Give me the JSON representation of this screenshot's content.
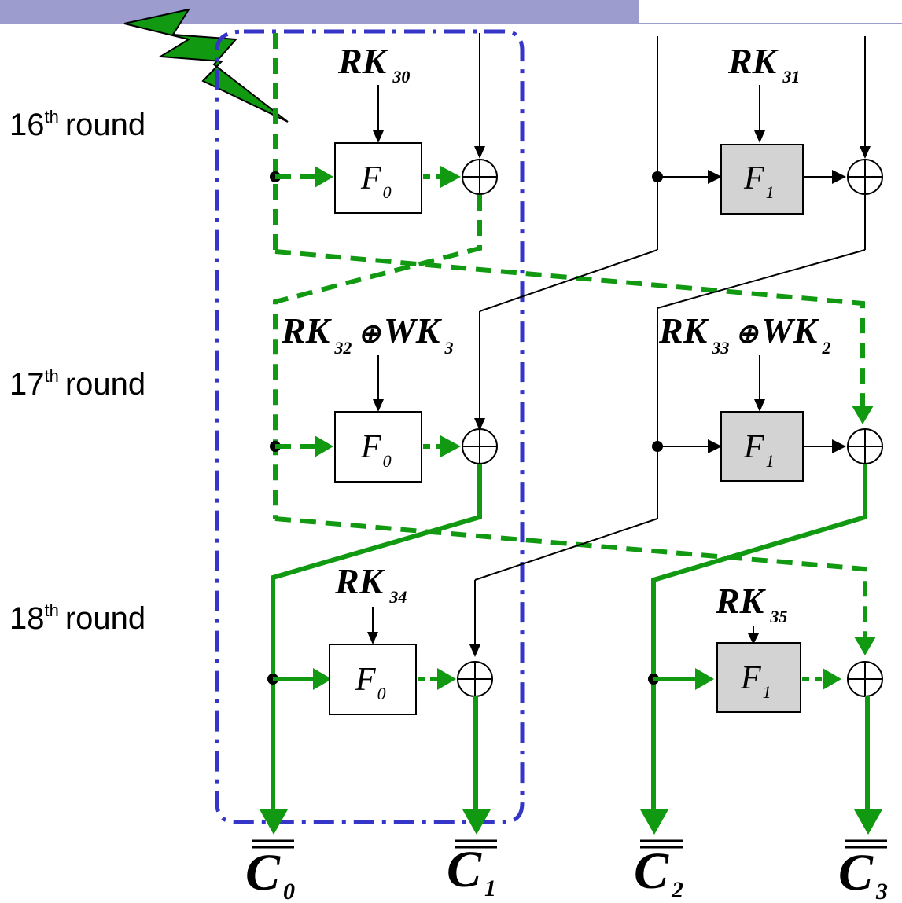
{
  "rounds": [
    {
      "number": "16",
      "suffix": "th",
      "word": "round"
    },
    {
      "number": "17",
      "suffix": "th",
      "word": "round"
    },
    {
      "number": "18",
      "suffix": "th",
      "word": "round"
    }
  ],
  "subkeys": {
    "rk30": {
      "main": "RK",
      "sub": "30"
    },
    "rk31": {
      "main": "RK",
      "sub": "31"
    },
    "rk32": {
      "main": "RK",
      "sub": "32",
      "op": "⊕",
      "main2": "WK",
      "sub2": "3"
    },
    "rk33": {
      "main": "RK",
      "sub": "33",
      "op": "⊕",
      "main2": "WK",
      "sub2": "2"
    },
    "rk34": {
      "main": "RK",
      "sub": "34"
    },
    "rk35": {
      "main": "RK",
      "sub": "35"
    }
  },
  "functions": {
    "f0": {
      "name": "F",
      "sub": "0"
    },
    "f1": {
      "name": "F",
      "sub": "1"
    }
  },
  "xor_symbol": "⊕",
  "outputs": [
    {
      "name": "C",
      "sub": "0"
    },
    {
      "name": "C",
      "sub": "1"
    },
    {
      "name": "C",
      "sub": "2"
    },
    {
      "name": "C",
      "sub": "3"
    }
  ],
  "colors": {
    "header_bar": "#9c9ccf",
    "fault_path": "#119911",
    "fault_bolt": "#119911",
    "region_outline": "#3535c8",
    "f1_fill": "#d3d3d3",
    "f0_fill": "#ffffff"
  }
}
